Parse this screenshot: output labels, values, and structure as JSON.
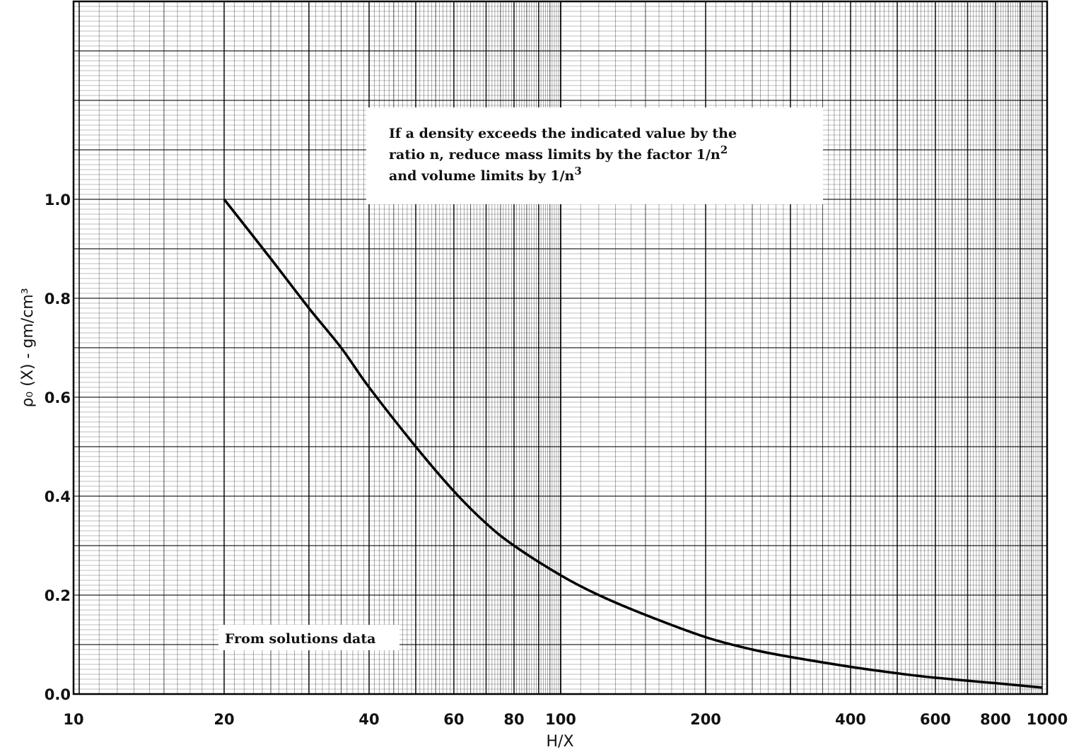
{
  "chart_data": {
    "type": "line",
    "title": "",
    "xlabel": "H/X",
    "ylabel": "ρ₀ (X) - gm/cm³",
    "x_scale": "log",
    "xlim": [
      10,
      1000
    ],
    "ylim": [
      0,
      1.0
    ],
    "grid": true,
    "x_tick_labels": [
      "10",
      "20",
      "40",
      "60",
      "80",
      "100",
      "200",
      "400",
      "600",
      "800",
      "1000"
    ],
    "x_ticks": [
      10,
      20,
      40,
      60,
      80,
      100,
      200,
      400,
      600,
      800,
      1000
    ],
    "y_tick_labels": [
      "0.0",
      "0.2",
      "0.4",
      "0.6",
      "0.8",
      "1.0"
    ],
    "y_ticks": [
      0.0,
      0.2,
      0.4,
      0.6,
      0.8,
      1.0
    ],
    "series": [
      {
        "x": [
          20,
          25,
          30,
          35,
          40,
          50,
          60,
          70,
          80,
          100,
          120,
          150,
          200,
          250,
          300,
          400,
          500,
          600,
          800,
          1000
        ],
        "y": [
          1.0,
          0.88,
          0.78,
          0.7,
          0.62,
          0.5,
          0.41,
          0.345,
          0.3,
          0.24,
          0.2,
          0.16,
          0.115,
          0.09,
          0.075,
          0.055,
          0.042,
          0.033,
          0.022,
          0.013
        ]
      }
    ],
    "annotations": {
      "note_line1": "If a density exceeds the indicated value by the",
      "note_line2": "ratio n, reduce mass limits by the factor 1/n",
      "note_line2_sup": "2",
      "note_line3": "and volume limits by 1/n",
      "note_line3_sup": "3",
      "source_label": "From solutions data"
    }
  }
}
